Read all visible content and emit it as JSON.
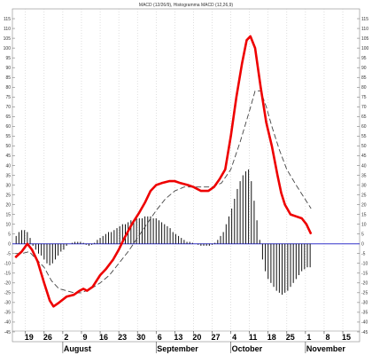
{
  "chart_data": {
    "type": "line",
    "title": "MACD (12/26/9), Histogramma MACD (12,26,9)",
    "ylim": [
      -50,
      120
    ],
    "y_ticks": [
      115,
      110,
      105,
      100,
      95,
      90,
      85,
      80,
      75,
      70,
      65,
      60,
      55,
      50,
      45,
      40,
      35,
      30,
      25,
      20,
      15,
      10,
      5,
      0,
      -5,
      -10,
      -15,
      -20,
      -25,
      -30,
      -35,
      -40,
      -45
    ],
    "x_tick_labels": [
      "19",
      "26",
      "2",
      "9",
      "16",
      "23",
      "30",
      "6",
      "13",
      "20",
      "27",
      "4",
      "11",
      "18",
      "25",
      "1",
      "8",
      "15"
    ],
    "x_tick_weeks": [
      0,
      1,
      2,
      3,
      4,
      5,
      6,
      7,
      8,
      9,
      10,
      11,
      12,
      13,
      14,
      15,
      16,
      17
    ],
    "months": [
      {
        "label": "August",
        "week": 2
      },
      {
        "label": "September",
        "week": 7
      },
      {
        "label": "October",
        "week": 11
      },
      {
        "label": "November",
        "week": 15
      }
    ],
    "x_range_weeks": [
      -0.7,
      17.9
    ],
    "zero_line": 0,
    "colors": {
      "macd": "#ee0000",
      "signal": "#444444",
      "histogram": "#111111",
      "zero": "#3333cc",
      "grid": "#c8c8c8"
    },
    "series": [
      {
        "kind": "line",
        "points": [
          [
            -0.55,
            -7
          ],
          [
            -0.2,
            -4
          ],
          [
            0.1,
            0
          ],
          [
            0.35,
            -3
          ],
          [
            0.65,
            -9
          ],
          [
            1.0,
            -20
          ],
          [
            1.3,
            -29
          ],
          [
            1.5,
            -32
          ],
          [
            1.8,
            -30
          ],
          [
            2.2,
            -27
          ],
          [
            2.6,
            -26
          ],
          [
            2.9,
            -24
          ],
          [
            3.1,
            -23
          ],
          [
            3.3,
            -24
          ],
          [
            3.6,
            -22
          ],
          [
            4.0,
            -16
          ],
          [
            4.3,
            -13
          ],
          [
            4.7,
            -8
          ],
          [
            5.0,
            -3
          ],
          [
            5.3,
            3
          ],
          [
            5.7,
            10
          ],
          [
            6.1,
            16
          ],
          [
            6.4,
            21
          ],
          [
            6.7,
            27
          ],
          [
            7.0,
            30
          ],
          [
            7.3,
            31
          ],
          [
            7.7,
            32
          ],
          [
            8.0,
            32
          ],
          [
            8.3,
            31
          ],
          [
            8.7,
            30
          ],
          [
            9.0,
            29
          ],
          [
            9.4,
            27
          ],
          [
            9.8,
            27
          ],
          [
            10.1,
            29
          ],
          [
            10.4,
            33
          ],
          [
            10.7,
            38
          ],
          [
            11.0,
            55
          ],
          [
            11.3,
            75
          ],
          [
            11.6,
            92
          ],
          [
            11.85,
            104
          ],
          [
            12.05,
            106
          ],
          [
            12.3,
            100
          ],
          [
            12.6,
            80
          ],
          [
            12.9,
            62
          ],
          [
            13.2,
            50
          ],
          [
            13.5,
            35
          ],
          [
            13.7,
            26
          ],
          [
            13.9,
            20
          ],
          [
            14.2,
            15
          ],
          [
            14.5,
            14
          ],
          [
            14.8,
            13
          ],
          [
            15.05,
            10
          ],
          [
            15.3,
            5
          ]
        ]
      },
      {
        "kind": "line",
        "points": [
          [
            -0.55,
            -5
          ],
          [
            -0.2,
            -5
          ],
          [
            0.2,
            -4
          ],
          [
            0.6,
            -8
          ],
          [
            1.0,
            -12
          ],
          [
            1.4,
            -19
          ],
          [
            1.8,
            -23
          ],
          [
            2.2,
            -24
          ],
          [
            2.6,
            -25
          ],
          [
            3.0,
            -25
          ],
          [
            3.5,
            -23
          ],
          [
            4.0,
            -20
          ],
          [
            4.5,
            -16
          ],
          [
            5.0,
            -10
          ],
          [
            5.5,
            -4
          ],
          [
            6.0,
            3
          ],
          [
            6.5,
            10
          ],
          [
            7.0,
            17
          ],
          [
            7.5,
            23
          ],
          [
            8.0,
            27
          ],
          [
            8.5,
            29
          ],
          [
            9.0,
            29
          ],
          [
            9.5,
            29
          ],
          [
            10.0,
            29
          ],
          [
            10.5,
            31
          ],
          [
            11.0,
            38
          ],
          [
            11.5,
            52
          ],
          [
            12.0,
            68
          ],
          [
            12.3,
            78
          ],
          [
            12.6,
            78
          ],
          [
            12.9,
            70
          ],
          [
            13.2,
            60
          ],
          [
            13.6,
            48
          ],
          [
            14.0,
            38
          ],
          [
            14.5,
            30
          ],
          [
            14.9,
            24
          ],
          [
            15.3,
            18
          ]
        ]
      },
      {
        "kind": "histogram",
        "points": [
          [
            -0.5,
            4
          ],
          [
            -0.35,
            6
          ],
          [
            -0.2,
            7
          ],
          [
            -0.05,
            7
          ],
          [
            0.1,
            6
          ],
          [
            0.25,
            3
          ],
          [
            0.4,
            -1
          ],
          [
            0.55,
            -3
          ],
          [
            0.7,
            -5
          ],
          [
            0.85,
            -6
          ],
          [
            1.0,
            -8
          ],
          [
            1.15,
            -10
          ],
          [
            1.3,
            -11
          ],
          [
            1.45,
            -10
          ],
          [
            1.6,
            -8
          ],
          [
            1.75,
            -6
          ],
          [
            1.9,
            -4
          ],
          [
            2.05,
            -3
          ],
          [
            2.2,
            -1
          ],
          [
            2.35,
            0
          ],
          [
            2.5,
            0.5
          ],
          [
            2.65,
            1
          ],
          [
            2.8,
            1
          ],
          [
            2.95,
            1
          ],
          [
            3.1,
            0.5
          ],
          [
            3.25,
            -0.5
          ],
          [
            3.4,
            -1
          ],
          [
            3.55,
            -0.5
          ],
          [
            3.7,
            0.5
          ],
          [
            3.85,
            2
          ],
          [
            4.0,
            3
          ],
          [
            4.15,
            4
          ],
          [
            4.3,
            5
          ],
          [
            4.45,
            6
          ],
          [
            4.6,
            6
          ],
          [
            4.75,
            7
          ],
          [
            4.9,
            8
          ],
          [
            5.05,
            9
          ],
          [
            5.2,
            10
          ],
          [
            5.35,
            10
          ],
          [
            5.5,
            11
          ],
          [
            5.65,
            12
          ],
          [
            5.8,
            12
          ],
          [
            5.95,
            13
          ],
          [
            6.1,
            13
          ],
          [
            6.25,
            13
          ],
          [
            6.4,
            14
          ],
          [
            6.55,
            14
          ],
          [
            6.7,
            14
          ],
          [
            6.85,
            13
          ],
          [
            7.0,
            13
          ],
          [
            7.15,
            12
          ],
          [
            7.3,
            11
          ],
          [
            7.45,
            10
          ],
          [
            7.6,
            9
          ],
          [
            7.75,
            8
          ],
          [
            7.9,
            6
          ],
          [
            8.05,
            5
          ],
          [
            8.2,
            4
          ],
          [
            8.35,
            3
          ],
          [
            8.5,
            2
          ],
          [
            8.65,
            1
          ],
          [
            8.8,
            1
          ],
          [
            8.95,
            0.5
          ],
          [
            9.1,
            0
          ],
          [
            9.25,
            -0.5
          ],
          [
            9.4,
            -1
          ],
          [
            9.55,
            -1
          ],
          [
            9.7,
            -1
          ],
          [
            9.85,
            -1
          ],
          [
            10.0,
            -0.5
          ],
          [
            10.15,
            0.5
          ],
          [
            10.3,
            2
          ],
          [
            10.45,
            4
          ],
          [
            10.6,
            6
          ],
          [
            10.75,
            10
          ],
          [
            10.9,
            14
          ],
          [
            11.05,
            18
          ],
          [
            11.2,
            23
          ],
          [
            11.35,
            28
          ],
          [
            11.5,
            32
          ],
          [
            11.65,
            35
          ],
          [
            11.8,
            37
          ],
          [
            11.95,
            38
          ],
          [
            12.1,
            32
          ],
          [
            12.25,
            22
          ],
          [
            12.4,
            12
          ],
          [
            12.55,
            2
          ],
          [
            12.7,
            -8
          ],
          [
            12.85,
            -14
          ],
          [
            13.0,
            -18
          ],
          [
            13.15,
            -20
          ],
          [
            13.3,
            -22
          ],
          [
            13.45,
            -24
          ],
          [
            13.6,
            -25
          ],
          [
            13.75,
            -26
          ],
          [
            13.9,
            -25
          ],
          [
            14.05,
            -24
          ],
          [
            14.2,
            -22
          ],
          [
            14.35,
            -20
          ],
          [
            14.5,
            -18
          ],
          [
            14.65,
            -16
          ],
          [
            14.8,
            -14
          ],
          [
            14.95,
            -13
          ],
          [
            15.1,
            -12
          ],
          [
            15.25,
            -12
          ]
        ]
      }
    ]
  }
}
